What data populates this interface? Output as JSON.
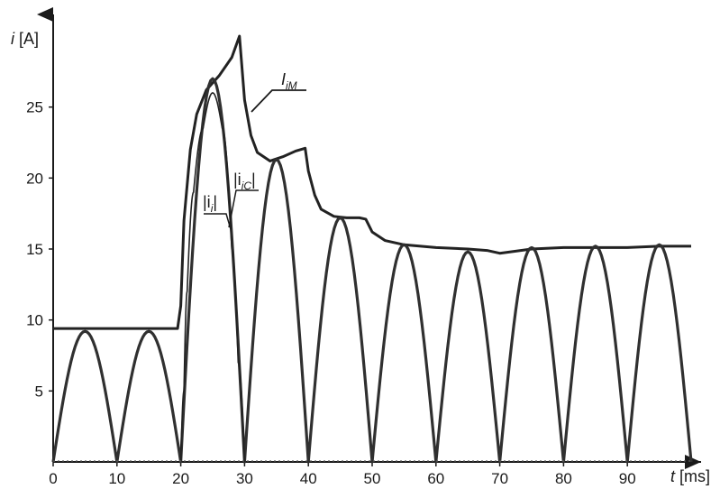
{
  "chart_data": {
    "type": "line",
    "title": "",
    "xlabel": {
      "var": "t",
      "unit": "[ms]"
    },
    "ylabel": {
      "var": "i",
      "unit": "[A]"
    },
    "xlim": [
      0,
      100
    ],
    "ylim": [
      0,
      30
    ],
    "x_ticks": [
      0,
      10,
      20,
      30,
      40,
      50,
      60,
      70,
      80,
      90
    ],
    "y_ticks": [
      5,
      10,
      15,
      20,
      25
    ],
    "grid": false,
    "legend": "none",
    "series": [
      {
        "key": "envelope",
        "label_main": "I",
        "label_sub": "iM",
        "x": [
          0,
          18.5,
          19.5,
          20,
          20.5,
          21.5,
          22.5,
          24,
          26,
          28,
          29.2,
          30,
          31,
          32,
          34,
          36,
          38,
          39.5,
          40,
          41,
          42,
          44,
          46,
          48,
          49,
          50,
          52,
          55,
          60,
          65,
          68,
          70,
          75,
          80,
          85,
          90,
          95,
          100
        ],
        "values": [
          9.4,
          9.4,
          9.4,
          11,
          17,
          22,
          24.5,
          26.2,
          27.2,
          28.5,
          30,
          25.5,
          23,
          21.8,
          21.2,
          21.5,
          21.9,
          22.1,
          20.5,
          18.8,
          17.8,
          17.3,
          17.2,
          17.2,
          17.1,
          16.2,
          15.6,
          15.3,
          15.1,
          15.0,
          14.9,
          14.7,
          15.0,
          15.1,
          15.1,
          15.1,
          15.2,
          15.2
        ]
      },
      {
        "key": "capacitor",
        "label_main": "|i",
        "label_sub": "iC",
        "label_close": "|",
        "x": [
          0,
          5,
          10,
          15,
          20,
          25,
          30,
          35,
          40,
          45,
          50,
          55,
          60,
          65,
          70,
          75,
          80,
          85,
          90,
          95,
          100
        ],
        "values": [
          0,
          9.2,
          0,
          9.2,
          0,
          27.0,
          0,
          21.3,
          0,
          17.2,
          0,
          15.3,
          0,
          14.8,
          0,
          15.1,
          0,
          15.2,
          0,
          15.3,
          0
        ]
      },
      {
        "key": "input",
        "label_main": "|i",
        "label_sub": "i",
        "label_close": "|",
        "x": [
          20,
          20.5,
          21,
          22,
          23.5,
          25,
          26.5,
          28,
          29,
          30
        ],
        "values": [
          0,
          5,
          12,
          19,
          23.5,
          26.0,
          23.5,
          15,
          7,
          0
        ]
      }
    ]
  }
}
